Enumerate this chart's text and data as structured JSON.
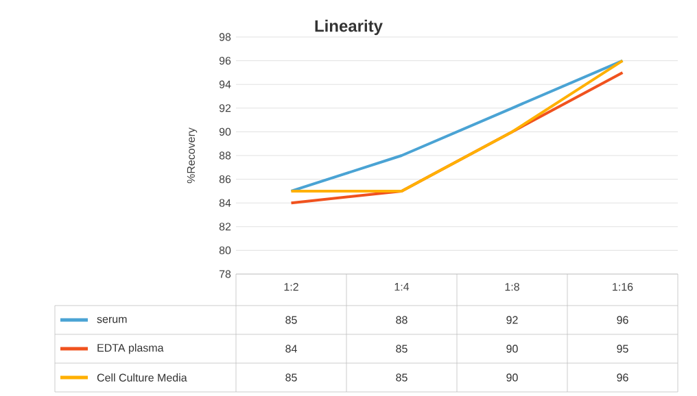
{
  "chart_data": {
    "type": "line",
    "title": "Linearity",
    "ylabel": "%Recovery",
    "categories": [
      "1:2",
      "1:4",
      "1:8",
      "1:16"
    ],
    "series": [
      {
        "name": "serum",
        "color": "#4aa3d4",
        "values": [
          85,
          88,
          92,
          96
        ]
      },
      {
        "name": "EDTA plasma",
        "color": "#f0521e",
        "values": [
          84,
          85,
          90,
          95
        ]
      },
      {
        "name": "Cell Culture Media",
        "color": "#ffb000",
        "values": [
          85,
          85,
          90,
          96
        ]
      }
    ],
    "ylim": [
      78,
      98
    ],
    "yticks": [
      78,
      80,
      82,
      84,
      86,
      88,
      90,
      92,
      94,
      96,
      98
    ],
    "grid": "y",
    "legend": "bottom",
    "data_labels": true,
    "marker": "none"
  }
}
